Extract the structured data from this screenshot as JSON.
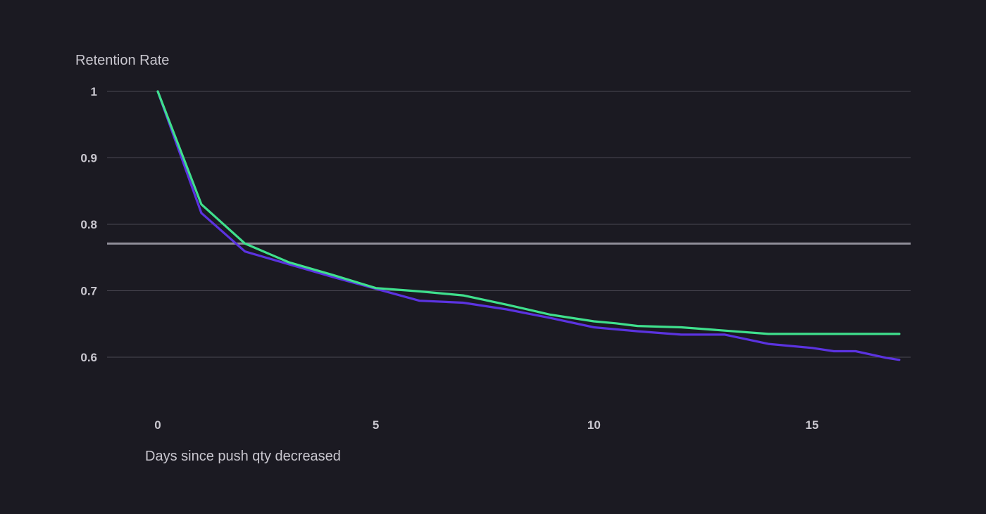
{
  "chart_data": {
    "type": "line",
    "ylabel": "Retention Rate",
    "xlabel": "Days since push qty decreased",
    "xlim": [
      0,
      17.2
    ],
    "ylim": [
      0.555,
      1.0
    ],
    "xticks": [
      0,
      5,
      10,
      15
    ],
    "yticks": [
      1,
      0.9,
      0.8,
      0.7,
      0.6
    ],
    "xtick_labels": [
      "0",
      "5",
      "10",
      "15"
    ],
    "ytick_labels": [
      "1",
      "0.9",
      "0.8",
      "0.7",
      "0.6"
    ],
    "grid": "horizontal",
    "reference_line": {
      "y": 0.771,
      "color": "#8f8d98"
    },
    "series": [
      {
        "color": "#3fe08d",
        "x": [
          0,
          1,
          2,
          3,
          4,
          5,
          6,
          7,
          8,
          9,
          10,
          10.5,
          11,
          12,
          13,
          14,
          15,
          16,
          17
        ],
        "y": [
          1.0,
          0.83,
          0.771,
          0.743,
          0.724,
          0.704,
          0.699,
          0.693,
          0.679,
          0.664,
          0.654,
          0.651,
          0.647,
          0.645,
          0.64,
          0.635,
          0.635,
          0.635,
          0.635
        ]
      },
      {
        "color": "#5b33e0",
        "x": [
          0,
          1,
          2,
          3,
          4,
          5,
          6,
          7,
          8,
          9,
          10,
          11,
          12,
          13,
          14,
          15,
          15.5,
          16,
          16.7,
          17
        ],
        "y": [
          1.0,
          0.817,
          0.759,
          0.74,
          0.721,
          0.703,
          0.685,
          0.682,
          0.672,
          0.659,
          0.645,
          0.639,
          0.634,
          0.634,
          0.62,
          0.614,
          0.609,
          0.609,
          0.599,
          0.596
        ]
      }
    ]
  }
}
